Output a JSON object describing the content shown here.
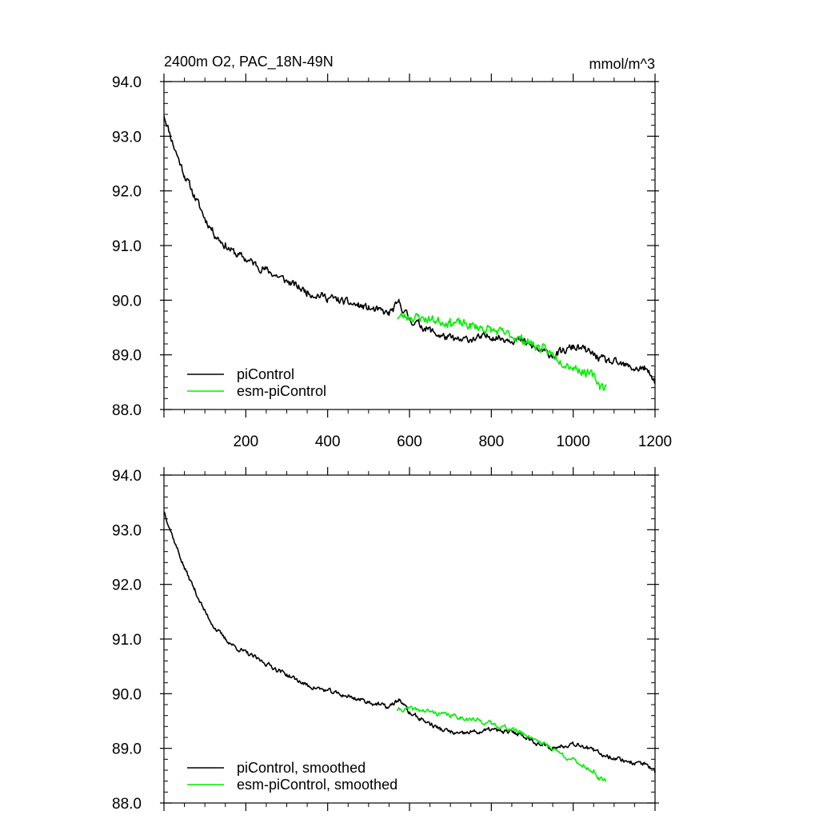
{
  "chart_data": [
    {
      "type": "line",
      "title": "2400m O2, PAC_18N-49N",
      "units": "mmol/m^3",
      "xlim": [
        0,
        1200
      ],
      "ylim": [
        88.0,
        94.0
      ],
      "x_ticks": [
        200,
        400,
        600,
        800,
        1000,
        1200
      ],
      "y_ticks": [
        "88.0",
        "89.0",
        "90.0",
        "91.0",
        "92.0",
        "93.0",
        "94.0"
      ],
      "grid": false,
      "legend_position": "bottom-left",
      "series": [
        {
          "name": "piControl",
          "color": "#000000",
          "x": [
            0,
            25,
            50,
            75,
            100,
            125,
            150,
            175,
            200,
            225,
            250,
            275,
            300,
            325,
            350,
            375,
            400,
            425,
            450,
            475,
            500,
            525,
            550,
            575,
            600,
            625,
            650,
            675,
            700,
            725,
            750,
            775,
            800,
            825,
            850,
            875,
            900,
            925,
            950,
            975,
            1000,
            1025,
            1050,
            1075,
            1100,
            1125,
            1150,
            1175,
            1200
          ],
          "y": [
            93.4,
            92.8,
            92.3,
            91.9,
            91.5,
            91.2,
            91.0,
            90.85,
            90.75,
            90.65,
            90.55,
            90.45,
            90.35,
            90.25,
            90.15,
            90.1,
            90.05,
            90.0,
            89.95,
            89.9,
            89.85,
            89.8,
            89.75,
            89.95,
            89.65,
            89.55,
            89.45,
            89.35,
            89.3,
            89.25,
            89.3,
            89.3,
            89.35,
            89.3,
            89.3,
            89.25,
            89.15,
            89.05,
            89.0,
            89.05,
            89.15,
            89.1,
            89.0,
            88.9,
            88.85,
            88.8,
            88.75,
            88.75,
            88.5
          ],
          "noise": 0.06,
          "seed": 11
        },
        {
          "name": "esm-piControl",
          "color": "#00ee00",
          "x": [
            570,
            600,
            625,
            650,
            675,
            700,
            725,
            750,
            775,
            800,
            825,
            850,
            875,
            900,
            925,
            950,
            975,
            1000,
            1025,
            1050,
            1065,
            1080
          ],
          "y": [
            89.7,
            89.7,
            89.68,
            89.65,
            89.62,
            89.6,
            89.57,
            89.53,
            89.5,
            89.45,
            89.4,
            89.35,
            89.28,
            89.2,
            89.1,
            89.0,
            88.88,
            88.78,
            88.7,
            88.6,
            88.45,
            88.42
          ],
          "noise": 0.07,
          "seed": 23
        }
      ]
    },
    {
      "type": "line",
      "xlim": [
        0,
        1200
      ],
      "ylim": [
        88.0,
        94.0
      ],
      "y_ticks": [
        "88.0",
        "89.0",
        "90.0",
        "91.0",
        "92.0",
        "93.0",
        "94.0"
      ],
      "grid": false,
      "legend_position": "bottom-left",
      "series": [
        {
          "name": "piControl, smoothed",
          "color": "#000000",
          "x": [
            0,
            25,
            50,
            75,
            100,
            125,
            150,
            175,
            200,
            225,
            250,
            275,
            300,
            325,
            350,
            375,
            400,
            425,
            450,
            475,
            500,
            525,
            550,
            575,
            600,
            625,
            650,
            675,
            700,
            725,
            750,
            775,
            800,
            825,
            850,
            875,
            900,
            925,
            950,
            975,
            1000,
            1025,
            1050,
            1075,
            1100,
            1125,
            1150,
            1175,
            1200
          ],
          "y": [
            93.35,
            92.8,
            92.3,
            91.9,
            91.5,
            91.2,
            91.0,
            90.85,
            90.75,
            90.65,
            90.55,
            90.45,
            90.35,
            90.25,
            90.15,
            90.1,
            90.05,
            90.0,
            89.95,
            89.9,
            89.85,
            89.8,
            89.75,
            89.9,
            89.65,
            89.55,
            89.45,
            89.35,
            89.3,
            89.25,
            89.3,
            89.3,
            89.35,
            89.3,
            89.3,
            89.25,
            89.15,
            89.05,
            89.0,
            89.05,
            89.1,
            89.05,
            88.95,
            88.88,
            88.83,
            88.78,
            88.73,
            88.72,
            88.55
          ],
          "noise": 0.035,
          "seed": 37
        },
        {
          "name": "esm-piControl, smoothed",
          "color": "#00ee00",
          "x": [
            570,
            600,
            625,
            650,
            675,
            700,
            725,
            750,
            775,
            800,
            825,
            850,
            875,
            900,
            925,
            950,
            975,
            1000,
            1025,
            1050,
            1065,
            1080
          ],
          "y": [
            89.7,
            89.72,
            89.7,
            89.67,
            89.63,
            89.6,
            89.57,
            89.53,
            89.5,
            89.45,
            89.4,
            89.35,
            89.28,
            89.2,
            89.1,
            89.0,
            88.88,
            88.78,
            88.68,
            88.58,
            88.42,
            88.42
          ],
          "noise": 0.035,
          "seed": 41
        }
      ]
    }
  ]
}
